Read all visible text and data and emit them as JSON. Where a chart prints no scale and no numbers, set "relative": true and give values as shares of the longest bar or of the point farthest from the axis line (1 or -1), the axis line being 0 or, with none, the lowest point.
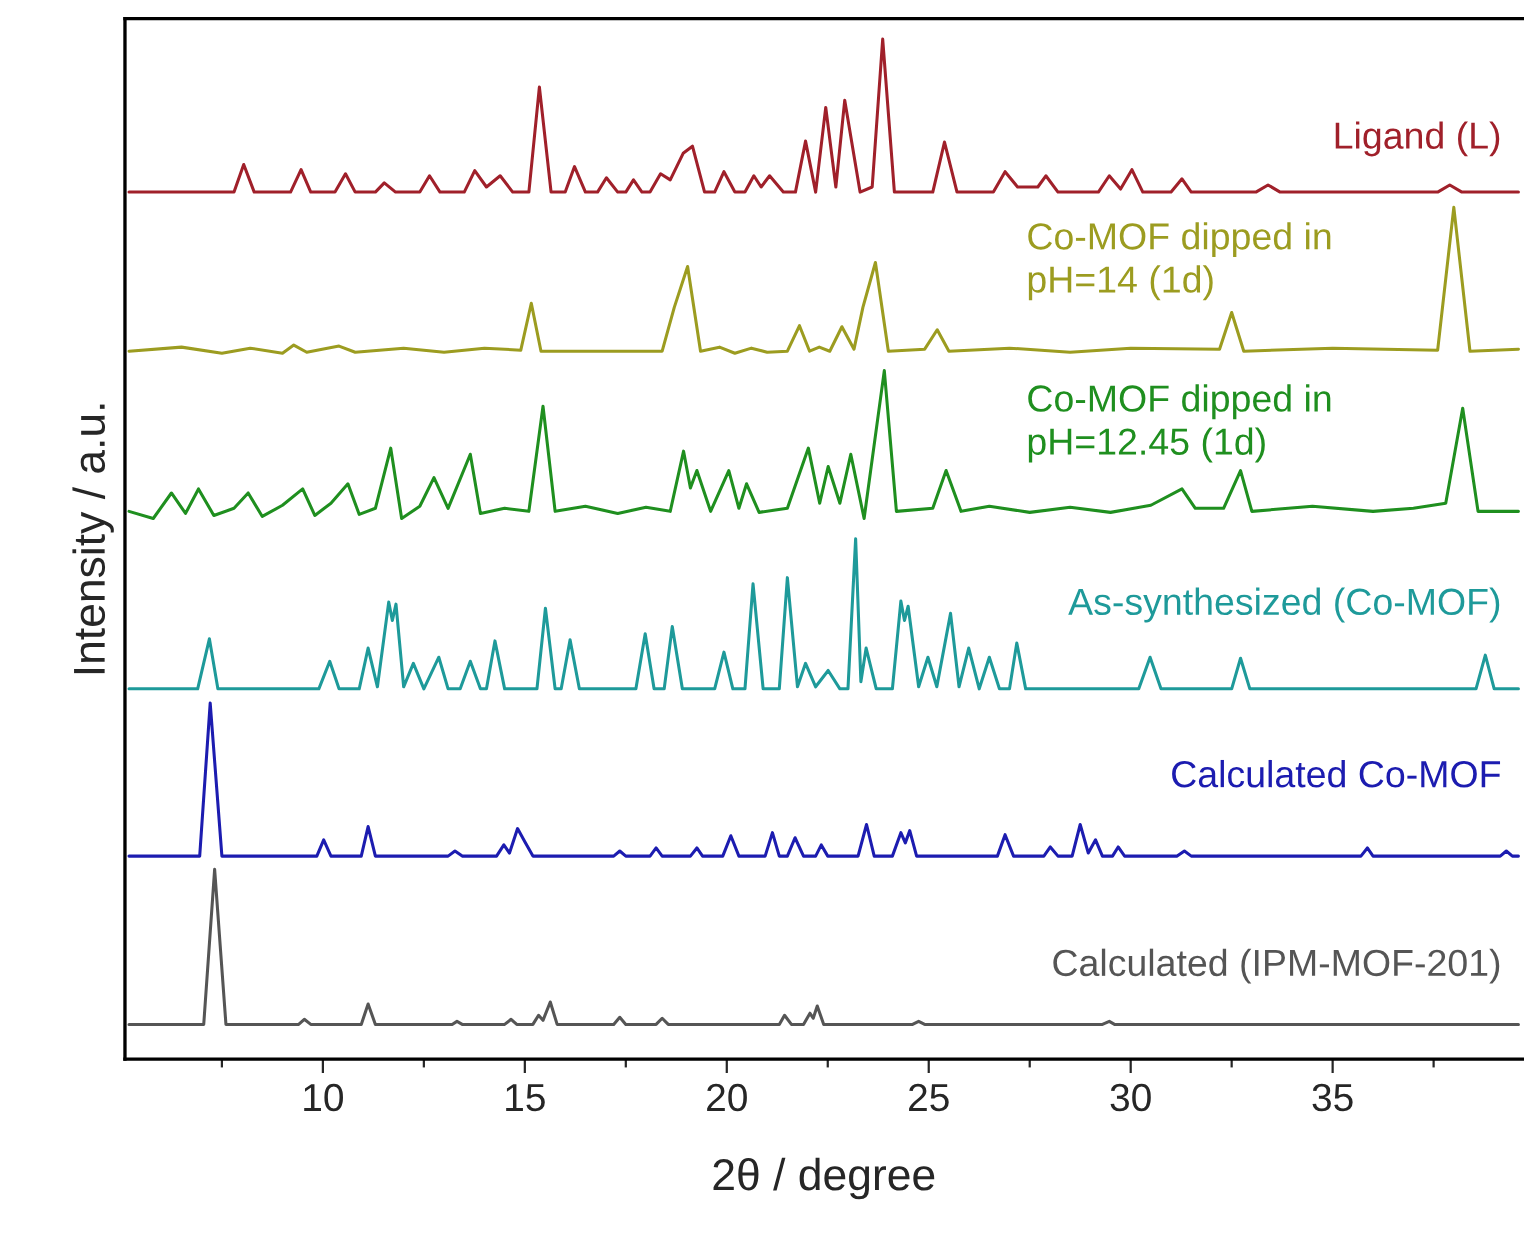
{
  "chart_data": {
    "type": "line",
    "xlabel": "2θ / degree",
    "ylabel": "Intensity / a.u.",
    "relative": true,
    "tick_labels": "x",
    "grid": false,
    "legend": false,
    "marker": "none",
    "line_style": "solid",
    "xlim": [
      5.1,
      39.7
    ],
    "xticks": [
      {
        "value": 7.5,
        "label": null
      },
      10,
      {
        "value": 12.5,
        "label": null
      },
      15,
      {
        "value": 17.5,
        "label": null
      },
      20,
      {
        "value": 22.5,
        "label": null
      },
      25,
      {
        "value": 27.5,
        "label": null
      },
      30,
      {
        "value": 32.5,
        "label": null
      },
      35,
      {
        "value": 37.5,
        "label": null
      }
    ],
    "series": [
      {
        "name": "Ligand (L)",
        "color": "#a0202a",
        "x": [
          5.2,
          7.8,
          8.04,
          8.3,
          9.2,
          9.46,
          9.7,
          10.3,
          10.56,
          10.8,
          11.3,
          11.52,
          11.8,
          12.4,
          12.64,
          12.9,
          13.5,
          13.76,
          14.05,
          14.39,
          14.7,
          15.1,
          15.36,
          15.65,
          16.0,
          16.23,
          16.5,
          16.8,
          17.02,
          17.3,
          17.5,
          17.69,
          17.9,
          18.1,
          18.36,
          18.6,
          18.92,
          19.15,
          19.45,
          19.7,
          19.93,
          20.2,
          20.45,
          20.67,
          20.85,
          21.06,
          21.4,
          21.7,
          21.95,
          22.2,
          22.45,
          22.7,
          22.92,
          23.3,
          23.6,
          23.86,
          24.15,
          25.1,
          25.39,
          25.7,
          26.6,
          26.89,
          27.2,
          27.7,
          27.9,
          28.2,
          29.2,
          29.47,
          29.75,
          30.03,
          30.3,
          31.0,
          31.27,
          31.5,
          33.1,
          33.4,
          33.7,
          37.6,
          37.9,
          38.2,
          39.6
        ],
        "values": [
          0.85,
          0.85,
          0.877,
          0.85,
          0.85,
          0.872,
          0.85,
          0.85,
          0.868,
          0.85,
          0.85,
          0.859,
          0.85,
          0.85,
          0.866,
          0.85,
          0.85,
          0.871,
          0.855,
          0.866,
          0.85,
          0.85,
          0.953,
          0.85,
          0.85,
          0.875,
          0.85,
          0.85,
          0.864,
          0.85,
          0.85,
          0.862,
          0.85,
          0.85,
          0.868,
          0.862,
          0.888,
          0.895,
          0.85,
          0.85,
          0.87,
          0.85,
          0.85,
          0.866,
          0.855,
          0.866,
          0.85,
          0.85,
          0.9,
          0.85,
          0.933,
          0.855,
          0.94,
          0.85,
          0.855,
          1.0,
          0.85,
          0.85,
          0.899,
          0.85,
          0.85,
          0.87,
          0.855,
          0.855,
          0.866,
          0.85,
          0.85,
          0.866,
          0.853,
          0.872,
          0.85,
          0.85,
          0.863,
          0.85,
          0.85,
          0.857,
          0.85,
          0.85,
          0.857,
          0.85,
          0.85
        ]
      },
      {
        "name": "Co-MOF dipped in\npH=14 (1d)",
        "color": "#9c9c20",
        "x": [
          5.2,
          6.5,
          7.5,
          8.2,
          9.0,
          9.28,
          9.6,
          10.4,
          10.8,
          12.0,
          13.0,
          14.0,
          14.9,
          15.16,
          15.4,
          18.4,
          18.7,
          19.03,
          19.35,
          19.82,
          20.2,
          20.61,
          21.0,
          21.5,
          21.8,
          22.05,
          22.29,
          22.55,
          22.85,
          23.15,
          23.37,
          23.68,
          24.0,
          24.9,
          25.21,
          25.5,
          27.0,
          28.5,
          30.0,
          32.2,
          32.5,
          32.8,
          35.0,
          37.6,
          38.0,
          38.4,
          39.6
        ],
        "values": [
          0.694,
          0.698,
          0.692,
          0.697,
          0.692,
          0.7,
          0.693,
          0.699,
          0.693,
          0.697,
          0.693,
          0.697,
          0.695,
          0.741,
          0.694,
          0.694,
          0.737,
          0.777,
          0.694,
          0.698,
          0.692,
          0.697,
          0.693,
          0.694,
          0.719,
          0.694,
          0.698,
          0.694,
          0.718,
          0.696,
          0.737,
          0.781,
          0.694,
          0.696,
          0.715,
          0.694,
          0.697,
          0.693,
          0.697,
          0.696,
          0.732,
          0.694,
          0.697,
          0.695,
          0.835,
          0.694,
          0.696
        ]
      },
      {
        "name": "Co-MOF dipped in\npH=12.45 (1d)",
        "color": "#1f8f1f",
        "x": [
          5.2,
          5.8,
          6.25,
          6.6,
          6.92,
          7.3,
          7.8,
          8.15,
          8.5,
          9.0,
          9.5,
          9.8,
          10.2,
          10.62,
          10.9,
          11.3,
          11.68,
          11.95,
          12.4,
          12.75,
          13.1,
          13.65,
          13.9,
          14.5,
          15.1,
          15.45,
          15.75,
          16.5,
          17.3,
          18.0,
          18.6,
          18.93,
          19.1,
          19.26,
          19.6,
          20.05,
          20.3,
          20.49,
          20.8,
          21.5,
          22.02,
          22.3,
          22.51,
          22.8,
          23.07,
          23.4,
          23.9,
          24.2,
          25.1,
          25.43,
          25.8,
          26.5,
          27.5,
          28.5,
          29.5,
          30.5,
          31.27,
          31.6,
          32.3,
          32.72,
          33.0,
          34.5,
          36.0,
          37.0,
          37.8,
          38.22,
          38.6,
          39.6
        ],
        "values": [
          0.537,
          0.53,
          0.555,
          0.535,
          0.559,
          0.533,
          0.54,
          0.555,
          0.532,
          0.543,
          0.559,
          0.533,
          0.545,
          0.564,
          0.534,
          0.54,
          0.599,
          0.53,
          0.542,
          0.57,
          0.54,
          0.593,
          0.535,
          0.54,
          0.537,
          0.64,
          0.537,
          0.542,
          0.535,
          0.541,
          0.537,
          0.596,
          0.56,
          0.577,
          0.537,
          0.577,
          0.54,
          0.564,
          0.536,
          0.54,
          0.599,
          0.545,
          0.581,
          0.545,
          0.593,
          0.53,
          0.675,
          0.537,
          0.54,
          0.577,
          0.537,
          0.542,
          0.536,
          0.541,
          0.536,
          0.543,
          0.559,
          0.54,
          0.54,
          0.577,
          0.537,
          0.542,
          0.537,
          0.54,
          0.545,
          0.638,
          0.537,
          0.537
        ]
      },
      {
        "name": "As-synthesized (Co-MOF)",
        "color": "#1e9a9a",
        "x": [
          5.2,
          6.9,
          7.19,
          7.4,
          9.9,
          10.17,
          10.4,
          10.9,
          11.12,
          11.35,
          11.63,
          11.72,
          11.81,
          12.0,
          12.24,
          12.5,
          12.87,
          13.1,
          13.4,
          13.65,
          13.9,
          14.05,
          14.26,
          14.5,
          15.3,
          15.51,
          15.75,
          15.9,
          16.12,
          16.35,
          17.75,
          17.98,
          18.2,
          18.45,
          18.65,
          18.9,
          19.7,
          19.93,
          20.15,
          20.45,
          20.65,
          20.9,
          21.3,
          21.5,
          21.75,
          21.95,
          22.2,
          22.51,
          22.8,
          23.0,
          23.19,
          23.32,
          23.45,
          23.7,
          24.1,
          24.31,
          24.4,
          24.49,
          24.75,
          24.98,
          25.2,
          25.54,
          25.75,
          25.99,
          26.25,
          26.5,
          26.75,
          27.0,
          27.18,
          27.4,
          30.2,
          30.48,
          30.75,
          32.5,
          32.72,
          32.95,
          38.55,
          38.78,
          39.0,
          39.6
        ],
        "values": [
          0.363,
          0.363,
          0.412,
          0.363,
          0.363,
          0.39,
          0.363,
          0.363,
          0.403,
          0.365,
          0.448,
          0.43,
          0.446,
          0.365,
          0.388,
          0.363,
          0.394,
          0.363,
          0.363,
          0.39,
          0.363,
          0.363,
          0.41,
          0.363,
          0.363,
          0.442,
          0.363,
          0.363,
          0.411,
          0.363,
          0.363,
          0.417,
          0.363,
          0.363,
          0.424,
          0.363,
          0.363,
          0.399,
          0.363,
          0.363,
          0.466,
          0.363,
          0.363,
          0.472,
          0.365,
          0.388,
          0.365,
          0.381,
          0.363,
          0.363,
          0.51,
          0.37,
          0.403,
          0.363,
          0.363,
          0.449,
          0.43,
          0.444,
          0.365,
          0.394,
          0.365,
          0.437,
          0.365,
          0.403,
          0.363,
          0.394,
          0.363,
          0.363,
          0.408,
          0.363,
          0.363,
          0.394,
          0.363,
          0.363,
          0.393,
          0.363,
          0.363,
          0.396,
          0.363,
          0.363
        ]
      },
      {
        "name": "Calculated Co-MOF",
        "color": "#1c1cb0",
        "x": [
          5.2,
          6.95,
          7.21,
          7.5,
          9.85,
          10.02,
          10.2,
          10.95,
          11.12,
          11.3,
          13.1,
          13.27,
          13.45,
          14.3,
          14.48,
          14.62,
          14.82,
          15.0,
          15.2,
          17.2,
          17.35,
          17.5,
          18.1,
          18.25,
          18.4,
          19.1,
          19.26,
          19.4,
          19.9,
          20.1,
          20.3,
          20.95,
          21.13,
          21.3,
          21.5,
          21.69,
          21.9,
          22.2,
          22.34,
          22.5,
          23.25,
          23.46,
          23.65,
          24.1,
          24.31,
          24.42,
          24.53,
          24.7,
          26.7,
          26.89,
          27.1,
          27.85,
          28.01,
          28.2,
          28.55,
          28.75,
          28.95,
          29.13,
          29.3,
          29.55,
          29.69,
          29.85,
          31.15,
          31.33,
          31.5,
          35.7,
          35.86,
          36.0,
          39.15,
          39.3,
          39.45,
          39.6
        ],
        "values": [
          0.199,
          0.199,
          0.349,
          0.199,
          0.199,
          0.215,
          0.199,
          0.199,
          0.228,
          0.199,
          0.199,
          0.204,
          0.199,
          0.199,
          0.21,
          0.202,
          0.226,
          0.213,
          0.199,
          0.199,
          0.204,
          0.199,
          0.199,
          0.207,
          0.199,
          0.199,
          0.207,
          0.199,
          0.199,
          0.219,
          0.199,
          0.199,
          0.222,
          0.199,
          0.199,
          0.217,
          0.199,
          0.199,
          0.21,
          0.199,
          0.199,
          0.23,
          0.199,
          0.199,
          0.222,
          0.212,
          0.224,
          0.199,
          0.199,
          0.22,
          0.199,
          0.199,
          0.208,
          0.199,
          0.199,
          0.23,
          0.202,
          0.215,
          0.199,
          0.199,
          0.208,
          0.199,
          0.199,
          0.204,
          0.199,
          0.199,
          0.207,
          0.199,
          0.199,
          0.204,
          0.199,
          0.199
        ]
      },
      {
        "name": "Calculated (IPM-MOF-201)",
        "color": "#555555",
        "x": [
          5.2,
          7.05,
          7.32,
          7.6,
          9.4,
          9.54,
          9.7,
          10.95,
          11.12,
          11.3,
          13.2,
          13.32,
          13.45,
          14.5,
          14.66,
          14.8,
          15.2,
          15.34,
          15.45,
          15.63,
          15.8,
          17.2,
          17.35,
          17.5,
          18.25,
          18.4,
          18.55,
          21.3,
          21.43,
          21.6,
          21.9,
          22.06,
          22.14,
          22.24,
          22.4,
          24.6,
          24.75,
          24.9,
          29.3,
          29.47,
          29.6,
          39.6
        ],
        "values": [
          0.034,
          0.034,
          0.186,
          0.034,
          0.034,
          0.039,
          0.034,
          0.034,
          0.054,
          0.034,
          0.034,
          0.037,
          0.034,
          0.034,
          0.039,
          0.034,
          0.034,
          0.043,
          0.038,
          0.056,
          0.034,
          0.034,
          0.041,
          0.034,
          0.034,
          0.04,
          0.034,
          0.034,
          0.043,
          0.034,
          0.034,
          0.045,
          0.04,
          0.052,
          0.034,
          0.034,
          0.037,
          0.034,
          0.034,
          0.037,
          0.034,
          0.034
        ]
      }
    ]
  }
}
